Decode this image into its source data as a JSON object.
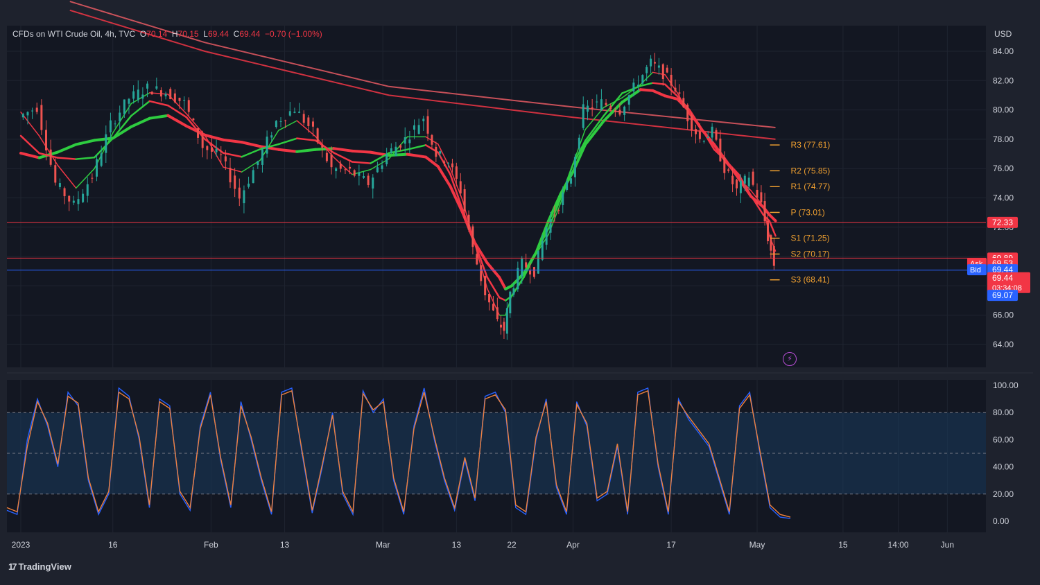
{
  "header": {
    "symbol": "CFDs on WTI Crude Oil, 4h, TVC",
    "open_label": "O",
    "open": "70.14",
    "high_label": "H",
    "high": "70.15",
    "low_label": "L",
    "low": "69.44",
    "close_label": "C",
    "close": "69.44",
    "change": "−0.70 (−1.00%)",
    "currency": "USD"
  },
  "brand": {
    "name": "TradingView",
    "logo_text": "17"
  },
  "chart_data": [
    {
      "type": "line",
      "y_axis_ticks": [
        "84.00",
        "82.00",
        "80.00",
        "78.00",
        "76.00",
        "74.00",
        "72.00",
        "70.00",
        "68.00",
        "66.00",
        "64.00"
      ],
      "ylim": [
        62.5,
        85
      ],
      "x_ticks": [
        {
          "label": "2023",
          "day": 0
        },
        {
          "label": "16",
          "day": 15
        },
        {
          "label": "Feb",
          "day": 31
        },
        {
          "label": "13",
          "day": 43
        },
        {
          "label": "Mar",
          "day": 59
        },
        {
          "label": "13",
          "day": 71
        },
        {
          "label": "22",
          "day": 80
        },
        {
          "label": "Apr",
          "day": 90
        },
        {
          "label": "17",
          "day": 106
        },
        {
          "label": "May",
          "day": 120
        },
        {
          "label": "15",
          "day": 134
        },
        {
          "label": "14:00",
          "day": 143
        },
        {
          "label": "Jun",
          "day": 151
        }
      ],
      "price_path": [
        {
          "day": 0,
          "price": 79.5
        },
        {
          "day": 3,
          "price": 80.2
        },
        {
          "day": 6,
          "price": 75.0
        },
        {
          "day": 9,
          "price": 73.5
        },
        {
          "day": 12,
          "price": 75.5
        },
        {
          "day": 15,
          "price": 79.0
        },
        {
          "day": 18,
          "price": 80.8
        },
        {
          "day": 21,
          "price": 81.5
        },
        {
          "day": 24,
          "price": 81.2
        },
        {
          "day": 27,
          "price": 80.5
        },
        {
          "day": 30,
          "price": 77.5
        },
        {
          "day": 33,
          "price": 76.8
        },
        {
          "day": 36,
          "price": 74.0
        },
        {
          "day": 39,
          "price": 76.5
        },
        {
          "day": 42,
          "price": 79.2
        },
        {
          "day": 45,
          "price": 80.1
        },
        {
          "day": 48,
          "price": 78.5
        },
        {
          "day": 51,
          "price": 76.0
        },
        {
          "day": 54,
          "price": 75.8
        },
        {
          "day": 57,
          "price": 75.0
        },
        {
          "day": 60,
          "price": 77.0
        },
        {
          "day": 63,
          "price": 78.0
        },
        {
          "day": 66,
          "price": 79.5
        },
        {
          "day": 68,
          "price": 77.0
        },
        {
          "day": 70,
          "price": 76.5
        },
        {
          "day": 72,
          "price": 74.5
        },
        {
          "day": 74,
          "price": 70.5
        },
        {
          "day": 76,
          "price": 67.5
        },
        {
          "day": 78,
          "price": 65.5
        },
        {
          "day": 79,
          "price": 65.0
        },
        {
          "day": 80,
          "price": 67.5
        },
        {
          "day": 82,
          "price": 69.5
        },
        {
          "day": 84,
          "price": 69.0
        },
        {
          "day": 86,
          "price": 72.0
        },
        {
          "day": 88,
          "price": 73.5
        },
        {
          "day": 90,
          "price": 75.5
        },
        {
          "day": 92,
          "price": 80.0
        },
        {
          "day": 95,
          "price": 80.5
        },
        {
          "day": 98,
          "price": 80.0
        },
        {
          "day": 101,
          "price": 82.0
        },
        {
          "day": 103,
          "price": 83.2
        },
        {
          "day": 105,
          "price": 82.5
        },
        {
          "day": 107,
          "price": 81.5
        },
        {
          "day": 109,
          "price": 79.5
        },
        {
          "day": 111,
          "price": 78.0
        },
        {
          "day": 113,
          "price": 78.5
        },
        {
          "day": 115,
          "price": 76.0
        },
        {
          "day": 117,
          "price": 74.5
        },
        {
          "day": 119,
          "price": 75.5
        },
        {
          "day": 121,
          "price": 73.5
        },
        {
          "day": 122,
          "price": 71.3
        },
        {
          "day": 123,
          "price": 69.44
        }
      ],
      "moving_averages": [
        {
          "color": "#f23645",
          "points": [
            {
              "day": 8,
              "price": 86.8
            },
            {
              "day": 30,
              "price": 84.0
            },
            {
              "day": 60,
              "price": 81.0
            },
            {
              "day": 90,
              "price": 79.5
            },
            {
              "day": 123,
              "price": 78.0
            }
          ]
        },
        {
          "color": "#e85a63",
          "points": [
            {
              "day": 8,
              "price": 87.4
            },
            {
              "day": 30,
              "price": 84.6
            },
            {
              "day": 60,
              "price": 81.6
            },
            {
              "day": 90,
              "price": 80.2
            },
            {
              "day": 123,
              "price": 78.8
            }
          ]
        }
      ],
      "pivot_levels": [
        {
          "label": "R3 (77.61)",
          "price": 77.61
        },
        {
          "label": "R2 (75.85)",
          "price": 75.85
        },
        {
          "label": "R1 (74.77)",
          "price": 74.77
        },
        {
          "label": "P (73.01)",
          "price": 73.01
        },
        {
          "label": "S1 (71.25)",
          "price": 71.25
        },
        {
          "label": "S2 (70.17)",
          "price": 70.17
        },
        {
          "label": "S3 (68.41)",
          "price": 68.41
        }
      ],
      "horizontal_lines": [
        {
          "price": 72.33,
          "color": "#f23645"
        },
        {
          "price": 69.89,
          "color": "#f23645"
        },
        {
          "price": 69.07,
          "color": "#2962ff"
        }
      ],
      "price_labels": [
        {
          "text": "72.33",
          "price": 72.33,
          "color": "#f23645"
        },
        {
          "text": "69.89",
          "price": 69.89,
          "color": "#f23645"
        },
        {
          "text": "69.53",
          "price": 69.53,
          "color": "#f23645",
          "tag": "Ask"
        },
        {
          "text": "69.44",
          "price": 69.1,
          "color": "#2962ff",
          "tag": "Bid"
        },
        {
          "text": "69.44",
          "price": 68.55,
          "color": "#f23645",
          "sub": "03:34:08"
        },
        {
          "text": "69.07",
          "price": 67.35,
          "color": "#2962ff"
        }
      ]
    },
    {
      "type": "line",
      "title": "",
      "y_axis_ticks": [
        "100.00",
        "80.00",
        "60.00",
        "40.00",
        "20.00",
        "0.00"
      ],
      "ylim": [
        0,
        100
      ],
      "bands": [
        80,
        50,
        20
      ],
      "series": [
        {
          "color": "#2962ff",
          "values": [
            8,
            5,
            60,
            90,
            70,
            40,
            95,
            85,
            30,
            5,
            20,
            98,
            92,
            60,
            10,
            90,
            85,
            20,
            8,
            70,
            95,
            45,
            10,
            88,
            60,
            30,
            5,
            95,
            98,
            50,
            6,
            40,
            80,
            20,
            5,
            96,
            80,
            90,
            30,
            5,
            70,
            98,
            60,
            30,
            8,
            45,
            15,
            92,
            95,
            80,
            10,
            5,
            60,
            90,
            25,
            5,
            88,
            70,
            15,
            20,
            55,
            5,
            95,
            98,
            40,
            5,
            90,
            75,
            65,
            55,
            30,
            5,
            85,
            95,
            50,
            10,
            3,
            2
          ]
        },
        {
          "color": "#f0813c",
          "values": [
            10,
            7,
            55,
            88,
            72,
            42,
            92,
            87,
            32,
            7,
            22,
            95,
            90,
            62,
            12,
            88,
            83,
            22,
            10,
            68,
            93,
            47,
            12,
            85,
            62,
            32,
            7,
            93,
            96,
            52,
            8,
            42,
            78,
            22,
            7,
            94,
            82,
            88,
            32,
            7,
            68,
            95,
            62,
            32,
            10,
            47,
            17,
            90,
            93,
            82,
            12,
            7,
            62,
            88,
            27,
            7,
            86,
            72,
            17,
            22,
            57,
            7,
            93,
            96,
            42,
            7,
            88,
            77,
            67,
            57,
            32,
            7,
            83,
            93,
            52,
            12,
            5,
            3
          ]
        }
      ]
    }
  ]
}
